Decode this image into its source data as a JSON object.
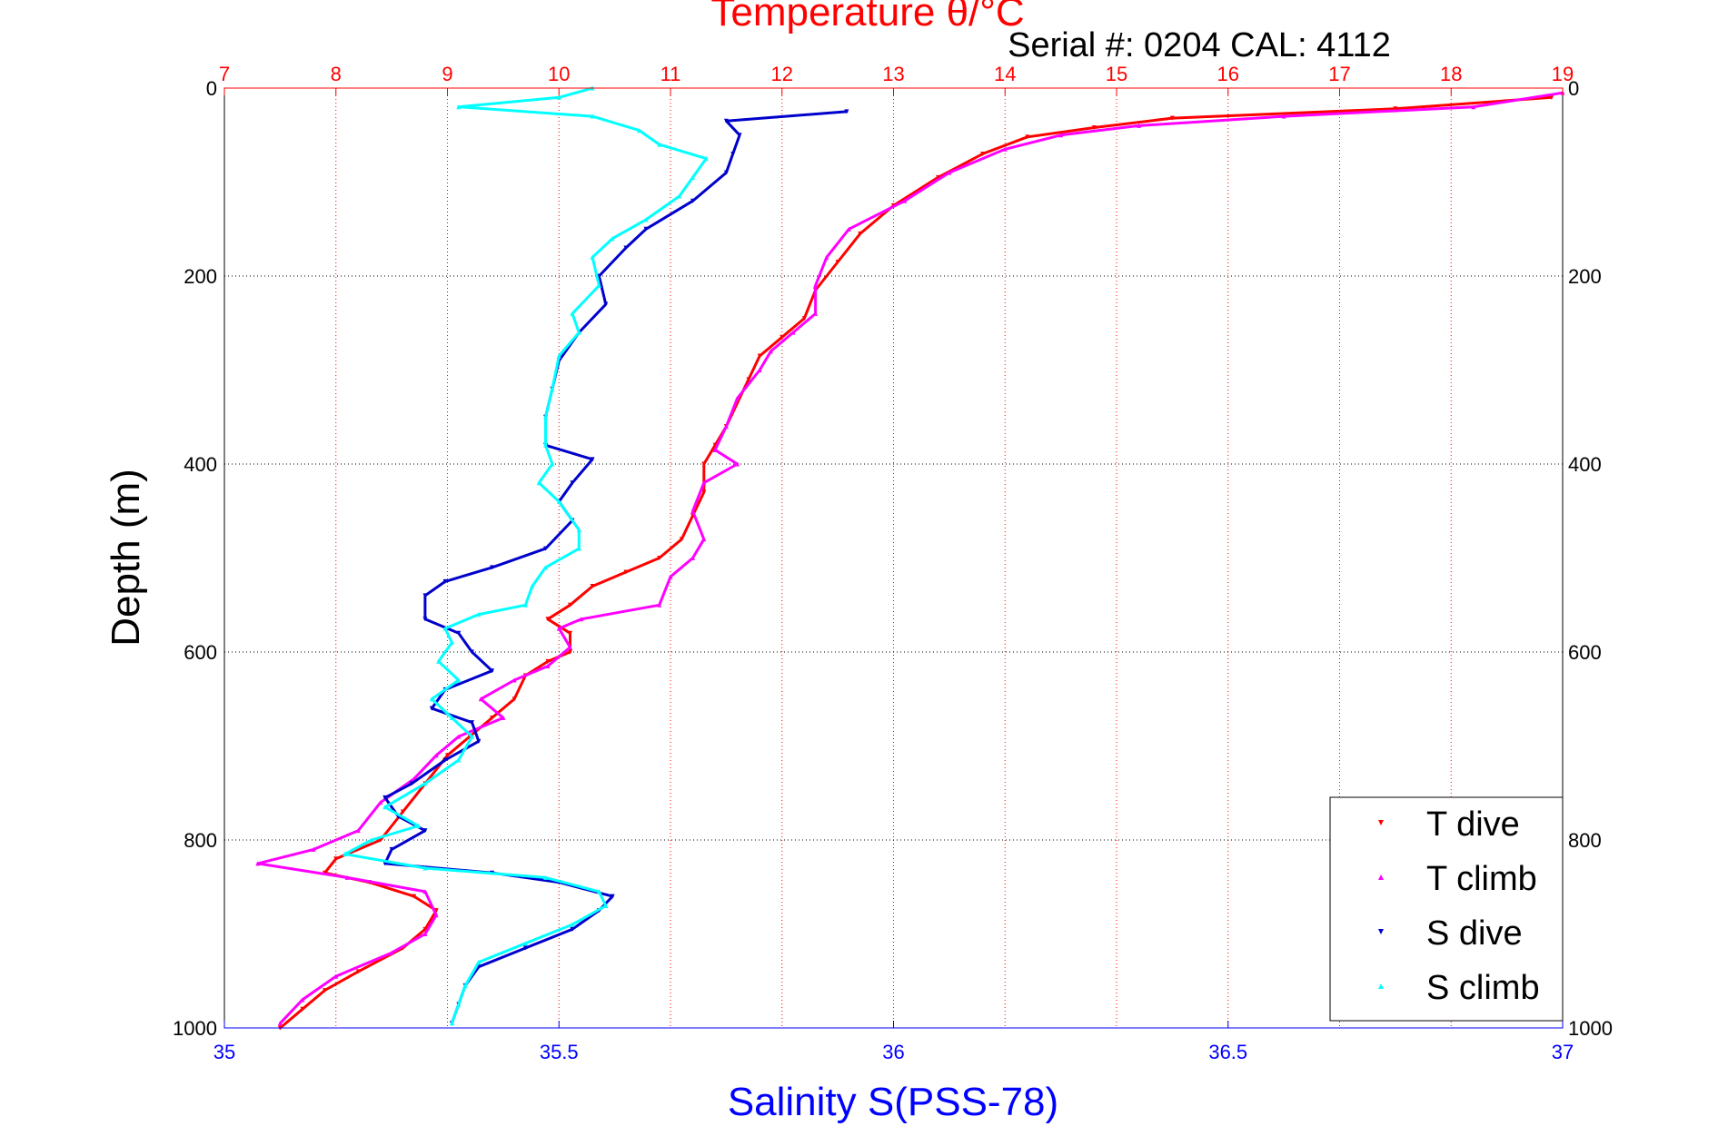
{
  "chart_data": {
    "type": "scatter",
    "title": "Temperature θ/°C",
    "subtitle": "Serial #: 0204  CAL: 4112",
    "xlabel": "Salinity S(PSS-78)",
    "ylabel": "Depth (m)",
    "temperature_axis": {
      "range": [
        7,
        19
      ],
      "ticks": [
        "7",
        "8",
        "9",
        "10",
        "11",
        "12",
        "13",
        "14",
        "15",
        "16",
        "17",
        "18",
        "19"
      ]
    },
    "salinity_axis": {
      "range": [
        35,
        37
      ],
      "ticks": [
        "35",
        "35.5",
        "36",
        "36.5",
        "37"
      ]
    },
    "depth_axis": {
      "range": [
        0,
        1000
      ],
      "reversed": true,
      "ticks": [
        "0",
        "200",
        "400",
        "600",
        "800",
        "1000"
      ]
    },
    "grid": true,
    "legend_position": "bottom-right",
    "colors": {
      "title": "#ff0000",
      "salinity_axis": "#0000ff",
      "T_dive": "#ff0000",
      "T_climb": "#ff00ff",
      "S_dive": "#0000cc",
      "S_climb": "#00ffff"
    },
    "series": [
      {
        "name": "T dive",
        "axis": "temperature",
        "marker": "down-triangle",
        "points": [
          [
            18.9,
            10
          ],
          [
            17.5,
            22
          ],
          [
            15.5,
            32
          ],
          [
            14.8,
            42
          ],
          [
            14.2,
            52
          ],
          [
            13.8,
            70
          ],
          [
            13.4,
            95
          ],
          [
            13.0,
            125
          ],
          [
            12.7,
            155
          ],
          [
            12.5,
            185
          ],
          [
            12.3,
            215
          ],
          [
            12.2,
            245
          ],
          [
            12.0,
            265
          ],
          [
            11.8,
            285
          ],
          [
            11.7,
            310
          ],
          [
            11.6,
            335
          ],
          [
            11.5,
            360
          ],
          [
            11.4,
            380
          ],
          [
            11.3,
            400
          ],
          [
            11.3,
            430
          ],
          [
            11.2,
            455
          ],
          [
            11.1,
            480
          ],
          [
            10.9,
            500
          ],
          [
            10.6,
            515
          ],
          [
            10.3,
            530
          ],
          [
            10.1,
            550
          ],
          [
            9.9,
            565
          ],
          [
            10.1,
            580
          ],
          [
            10.1,
            600
          ],
          [
            9.9,
            610
          ],
          [
            9.7,
            625
          ],
          [
            9.6,
            650
          ],
          [
            9.4,
            670
          ],
          [
            9.2,
            690
          ],
          [
            9.0,
            710
          ],
          [
            8.8,
            740
          ],
          [
            8.6,
            770
          ],
          [
            8.4,
            800
          ],
          [
            8.0,
            820
          ],
          [
            7.9,
            835
          ],
          [
            8.3,
            845
          ],
          [
            8.7,
            860
          ],
          [
            8.9,
            875
          ],
          [
            8.8,
            895
          ],
          [
            8.6,
            915
          ],
          [
            8.2,
            940
          ],
          [
            7.9,
            960
          ],
          [
            7.7,
            980
          ],
          [
            7.5,
            1000
          ]
        ]
      },
      {
        "name": "T climb",
        "axis": "temperature",
        "marker": "up-triangle",
        "points": [
          [
            19.0,
            5
          ],
          [
            18.2,
            20
          ],
          [
            16.5,
            30
          ],
          [
            15.2,
            40
          ],
          [
            14.5,
            50
          ],
          [
            14.0,
            65
          ],
          [
            13.5,
            90
          ],
          [
            13.1,
            120
          ],
          [
            12.6,
            150
          ],
          [
            12.4,
            180
          ],
          [
            12.3,
            210
          ],
          [
            12.3,
            240
          ],
          [
            12.1,
            260
          ],
          [
            11.9,
            280
          ],
          [
            11.8,
            300
          ],
          [
            11.6,
            330
          ],
          [
            11.5,
            360
          ],
          [
            11.4,
            385
          ],
          [
            11.6,
            400
          ],
          [
            11.3,
            420
          ],
          [
            11.2,
            450
          ],
          [
            11.3,
            480
          ],
          [
            11.2,
            500
          ],
          [
            11.0,
            520
          ],
          [
            10.9,
            550
          ],
          [
            10.2,
            565
          ],
          [
            10.0,
            575
          ],
          [
            10.1,
            595
          ],
          [
            9.9,
            615
          ],
          [
            9.6,
            630
          ],
          [
            9.3,
            650
          ],
          [
            9.5,
            670
          ],
          [
            9.1,
            690
          ],
          [
            8.9,
            710
          ],
          [
            8.7,
            735
          ],
          [
            8.4,
            760
          ],
          [
            8.2,
            790
          ],
          [
            7.8,
            810
          ],
          [
            7.3,
            825
          ],
          [
            8.1,
            840
          ],
          [
            8.8,
            855
          ],
          [
            8.9,
            880
          ],
          [
            8.8,
            900
          ],
          [
            8.5,
            920
          ],
          [
            8.0,
            945
          ],
          [
            7.7,
            970
          ],
          [
            7.5,
            995
          ]
        ]
      },
      {
        "name": "S dive",
        "axis": "salinity",
        "marker": "down-triangle",
        "points": [
          [
            35.93,
            25
          ],
          [
            35.75,
            35
          ],
          [
            35.77,
            50
          ],
          [
            35.76,
            70
          ],
          [
            35.75,
            90
          ],
          [
            35.7,
            120
          ],
          [
            35.63,
            150
          ],
          [
            35.6,
            170
          ],
          [
            35.56,
            200
          ],
          [
            35.57,
            230
          ],
          [
            35.53,
            260
          ],
          [
            35.5,
            290
          ],
          [
            35.49,
            320
          ],
          [
            35.48,
            350
          ],
          [
            35.48,
            380
          ],
          [
            35.55,
            395
          ],
          [
            35.52,
            420
          ],
          [
            35.5,
            440
          ],
          [
            35.52,
            460
          ],
          [
            35.48,
            490
          ],
          [
            35.4,
            510
          ],
          [
            35.33,
            525
          ],
          [
            35.3,
            540
          ],
          [
            35.3,
            565
          ],
          [
            35.35,
            580
          ],
          [
            35.37,
            600
          ],
          [
            35.4,
            620
          ],
          [
            35.33,
            640
          ],
          [
            35.31,
            660
          ],
          [
            35.37,
            675
          ],
          [
            35.38,
            695
          ],
          [
            35.33,
            715
          ],
          [
            35.28,
            740
          ],
          [
            35.24,
            755
          ],
          [
            35.26,
            775
          ],
          [
            35.3,
            790
          ],
          [
            35.25,
            810
          ],
          [
            35.24,
            825
          ],
          [
            35.4,
            835
          ],
          [
            35.5,
            845
          ],
          [
            35.58,
            860
          ],
          [
            35.56,
            875
          ],
          [
            35.52,
            895
          ],
          [
            35.45,
            915
          ],
          [
            35.38,
            935
          ],
          [
            35.36,
            955
          ],
          [
            35.35,
            975
          ],
          [
            35.34,
            995
          ]
        ]
      },
      {
        "name": "S climb",
        "axis": "salinity",
        "marker": "up-triangle",
        "points": [
          [
            35.55,
            0
          ],
          [
            35.5,
            10
          ],
          [
            35.35,
            20
          ],
          [
            35.55,
            30
          ],
          [
            35.62,
            45
          ],
          [
            35.65,
            60
          ],
          [
            35.72,
            75
          ],
          [
            35.7,
            95
          ],
          [
            35.68,
            115
          ],
          [
            35.63,
            140
          ],
          [
            35.58,
            160
          ],
          [
            35.55,
            180
          ],
          [
            35.56,
            210
          ],
          [
            35.52,
            240
          ],
          [
            35.53,
            260
          ],
          [
            35.5,
            285
          ],
          [
            35.49,
            320
          ],
          [
            35.48,
            350
          ],
          [
            35.48,
            380
          ],
          [
            35.49,
            400
          ],
          [
            35.47,
            420
          ],
          [
            35.5,
            440
          ],
          [
            35.53,
            470
          ],
          [
            35.53,
            490
          ],
          [
            35.48,
            510
          ],
          [
            35.46,
            530
          ],
          [
            35.45,
            550
          ],
          [
            35.38,
            560
          ],
          [
            35.33,
            575
          ],
          [
            35.34,
            590
          ],
          [
            35.32,
            610
          ],
          [
            35.35,
            630
          ],
          [
            35.31,
            650
          ],
          [
            35.34,
            670
          ],
          [
            35.37,
            690
          ],
          [
            35.35,
            715
          ],
          [
            35.3,
            740
          ],
          [
            35.24,
            765
          ],
          [
            35.29,
            785
          ],
          [
            35.22,
            800
          ],
          [
            35.18,
            815
          ],
          [
            35.3,
            830
          ],
          [
            35.48,
            840
          ],
          [
            35.56,
            855
          ],
          [
            35.57,
            870
          ],
          [
            35.52,
            890
          ],
          [
            35.45,
            910
          ],
          [
            35.38,
            930
          ],
          [
            35.36,
            955
          ],
          [
            35.35,
            975
          ],
          [
            35.34,
            995
          ]
        ]
      }
    ]
  }
}
